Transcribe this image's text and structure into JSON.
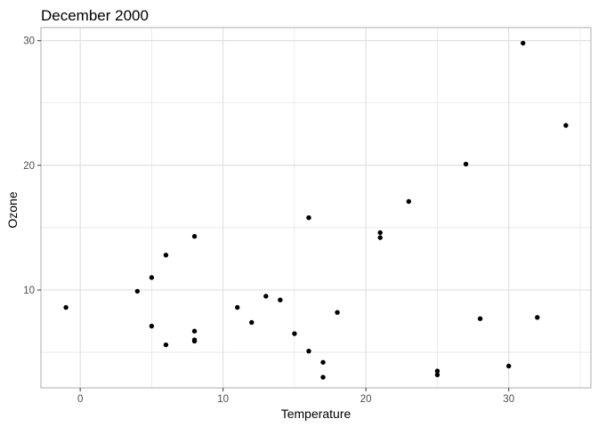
{
  "chart_data": {
    "type": "scatter",
    "title": "December 2000",
    "xlabel": "Temperature",
    "ylabel": "Ozone",
    "xlim": [
      -2.75,
      35.75
    ],
    "ylim": [
      2.15,
      31.05
    ],
    "x_ticks": [
      0,
      10,
      20,
      30
    ],
    "y_ticks": [
      10,
      20,
      30
    ],
    "x_minor_ticks": [
      -5,
      5,
      15,
      25,
      35
    ],
    "y_minor_ticks": [
      5,
      15,
      25
    ],
    "x_tick_labels": [
      "0",
      "10",
      "20",
      "30"
    ],
    "y_tick_labels": [
      "10",
      "20",
      "30"
    ],
    "grid": true,
    "legend": "none",
    "point_color": "#000000",
    "grid_color": "#dedede",
    "panel_border_color": "#b3b3b3",
    "points": [
      {
        "x": -1,
        "y": 8.6
      },
      {
        "x": 4,
        "y": 9.9
      },
      {
        "x": 5,
        "y": 11.0
      },
      {
        "x": 5,
        "y": 7.1
      },
      {
        "x": 6,
        "y": 12.8
      },
      {
        "x": 6,
        "y": 5.6
      },
      {
        "x": 8,
        "y": 14.3
      },
      {
        "x": 8,
        "y": 6.7
      },
      {
        "x": 8,
        "y": 6.0
      },
      {
        "x": 8,
        "y": 5.9
      },
      {
        "x": 11,
        "y": 8.6
      },
      {
        "x": 12,
        "y": 7.4
      },
      {
        "x": 13,
        "y": 9.5
      },
      {
        "x": 14,
        "y": 9.2
      },
      {
        "x": 15,
        "y": 6.5
      },
      {
        "x": 16,
        "y": 15.8
      },
      {
        "x": 16,
        "y": 5.1
      },
      {
        "x": 17,
        "y": 4.2
      },
      {
        "x": 17,
        "y": 3.0
      },
      {
        "x": 18,
        "y": 8.2
      },
      {
        "x": 21,
        "y": 14.6
      },
      {
        "x": 21,
        "y": 14.2
      },
      {
        "x": 23,
        "y": 17.1
      },
      {
        "x": 25,
        "y": 3.5
      },
      {
        "x": 25,
        "y": 3.2
      },
      {
        "x": 27,
        "y": 20.1
      },
      {
        "x": 28,
        "y": 7.7
      },
      {
        "x": 30,
        "y": 3.9
      },
      {
        "x": 31,
        "y": 29.8
      },
      {
        "x": 32,
        "y": 7.8
      },
      {
        "x": 34,
        "y": 23.2
      }
    ]
  }
}
